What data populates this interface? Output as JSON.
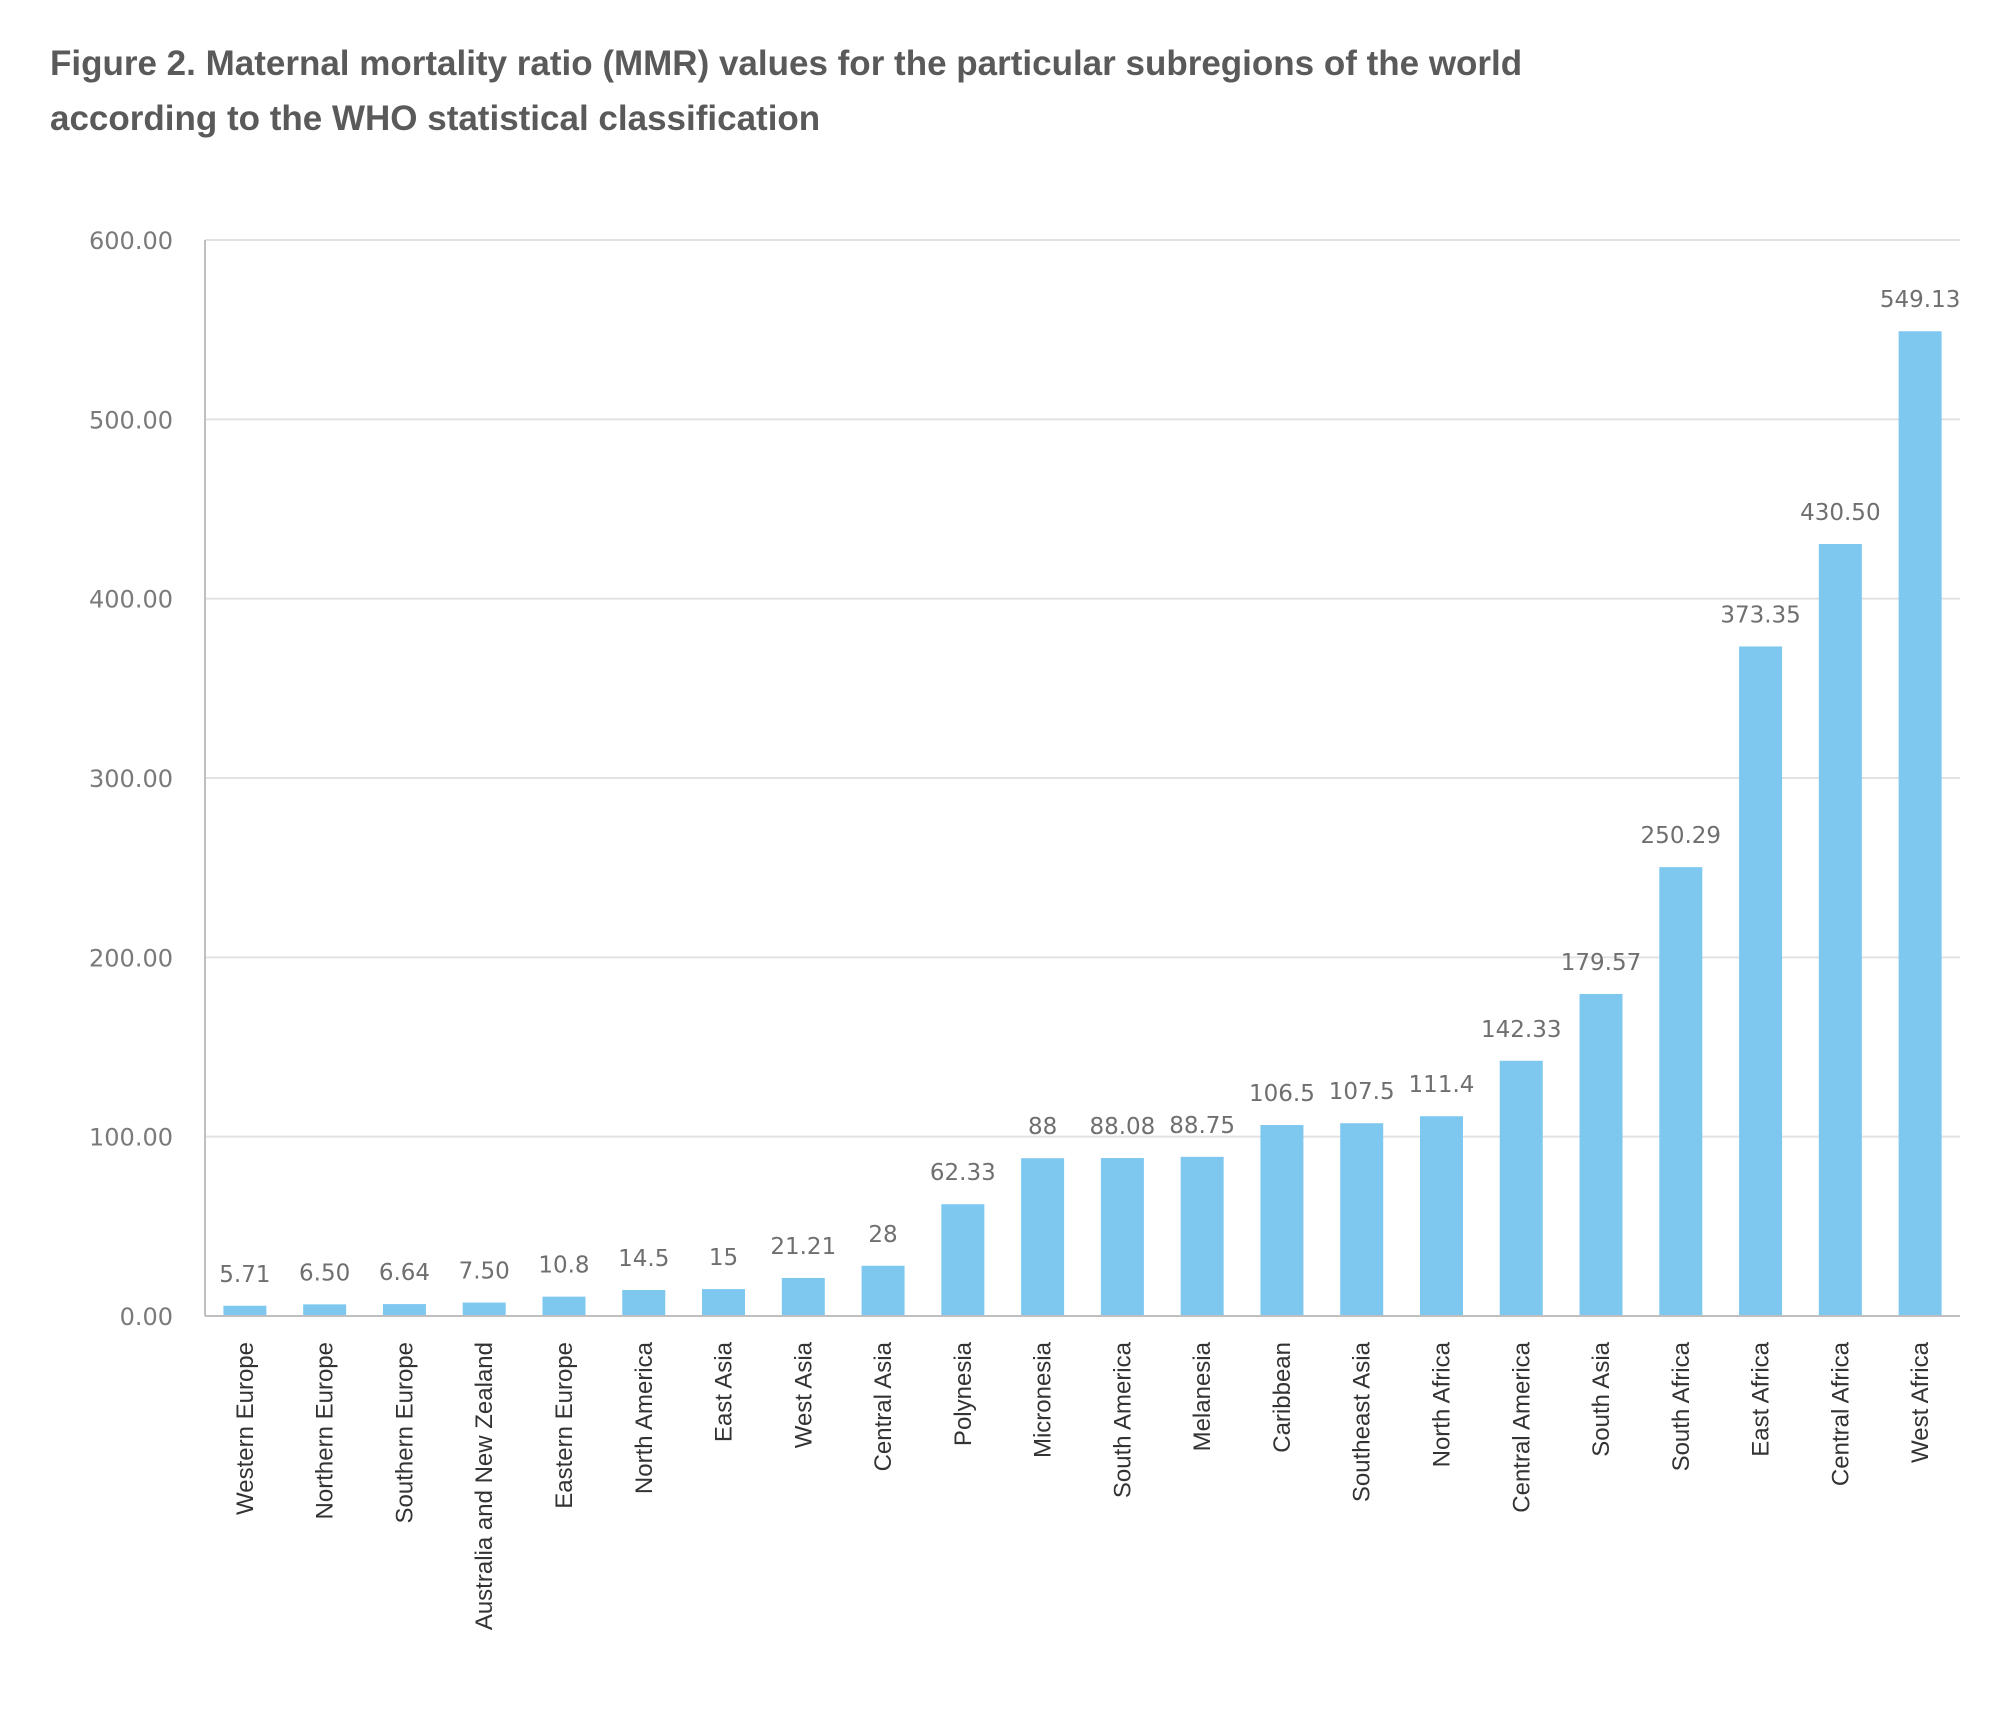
{
  "chart_data": {
    "type": "bar",
    "title": "Figure 2. Maternal mortality ratio (MMR) values for the particular subregions of the world according to the WHO statistical classification",
    "xlabel": "",
    "ylabel": "",
    "ylim": [
      0,
      600
    ],
    "yticks": [
      0,
      100,
      200,
      300,
      400,
      500,
      600
    ],
    "ytick_labels": [
      "0.00",
      "100.00",
      "200.00",
      "300.00",
      "400.00",
      "500.00",
      "600.00"
    ],
    "grid": true,
    "legend": "none",
    "bar_color": "#7ec8f0",
    "categories": [
      "Western Europe",
      "Northern Europe",
      "Southern Europe",
      "Australia and New Zealand",
      "Eastern Europe",
      "North America",
      "East Asia",
      "West Asia",
      "Central Asia",
      "Polynesia",
      "Micronesia",
      "South America",
      "Melanesia",
      "Caribbean",
      "Southeast Asia",
      "North Africa",
      "Central America",
      "South Asia",
      "South Africa",
      "East Africa",
      "Central Africa",
      "West Africa"
    ],
    "values": [
      5.71,
      6.5,
      6.64,
      7.5,
      10.8,
      14.5,
      15,
      21.21,
      28,
      62.33,
      88,
      88.08,
      88.75,
      106.5,
      107.5,
      111.4,
      142.33,
      179.57,
      250.29,
      373.35,
      430.5,
      549.13
    ],
    "data_labels": [
      "5.71",
      "6.50",
      "6.64",
      "7.50",
      "10.8",
      "14.5",
      "15",
      "21.21",
      "28",
      "62.33",
      "88",
      "88.08",
      "88.75",
      "106.5",
      "107.5",
      "111.4",
      "142.33",
      "179.57",
      "250.29",
      "373.35",
      "430.50",
      "549.13"
    ]
  }
}
